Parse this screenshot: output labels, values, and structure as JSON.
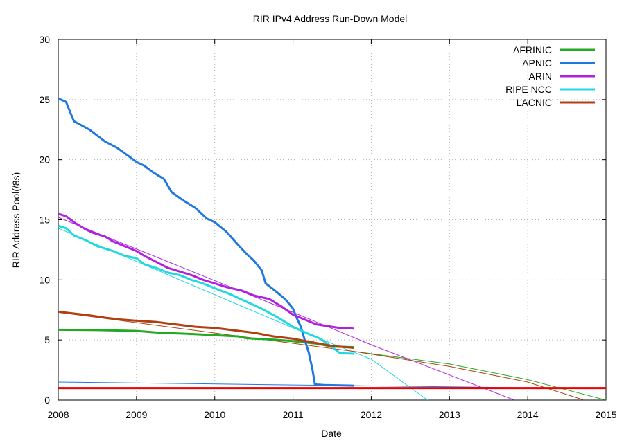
{
  "chart_data": {
    "type": "line",
    "title": "RIR IPv4 Address Run-Down Model",
    "xlabel": "Date",
    "ylabel": "RIR Address Pool(/8s)",
    "xlim": [
      2008,
      2015
    ],
    "ylim": [
      0,
      30
    ],
    "x_ticks": [
      2008,
      2009,
      2010,
      2011,
      2012,
      2013,
      2014,
      2015
    ],
    "x_tick_labels": [
      "2008",
      "2009",
      "2010",
      "2011",
      "2012",
      "2013",
      "2014",
      "2015"
    ],
    "y_ticks": [
      0,
      5,
      10,
      15,
      20,
      25,
      30
    ],
    "y_tick_labels": [
      "0",
      "5",
      "10",
      "15",
      "20",
      "25",
      "30"
    ],
    "grid": true,
    "legend_position": "top-right",
    "series": [
      {
        "name": "AFRINIC",
        "color": "#22aa22",
        "values": [
          [
            2008.0,
            5.85
          ],
          [
            2008.5,
            5.82
          ],
          [
            2009.0,
            5.75
          ],
          [
            2009.3,
            5.6
          ],
          [
            2009.7,
            5.5
          ],
          [
            2010.0,
            5.4
          ],
          [
            2010.3,
            5.3
          ],
          [
            2010.4,
            5.15
          ],
          [
            2010.7,
            5.05
          ],
          [
            2011.0,
            4.9
          ],
          [
            2011.3,
            4.7
          ],
          [
            2011.5,
            4.45
          ],
          [
            2011.78,
            4.4
          ]
        ]
      },
      {
        "name": "APNIC",
        "color": "#1e78e0",
        "values": [
          [
            2008.0,
            25.1
          ],
          [
            2008.1,
            24.8
          ],
          [
            2008.2,
            23.2
          ],
          [
            2008.4,
            22.5
          ],
          [
            2008.6,
            21.5
          ],
          [
            2008.75,
            21.0
          ],
          [
            2008.9,
            20.3
          ],
          [
            2009.0,
            19.8
          ],
          [
            2009.1,
            19.5
          ],
          [
            2009.2,
            19.0
          ],
          [
            2009.35,
            18.4
          ],
          [
            2009.45,
            17.3
          ],
          [
            2009.6,
            16.6
          ],
          [
            2009.75,
            16.0
          ],
          [
            2009.9,
            15.1
          ],
          [
            2010.0,
            14.8
          ],
          [
            2010.15,
            14.0
          ],
          [
            2010.3,
            12.9
          ],
          [
            2010.4,
            12.2
          ],
          [
            2010.5,
            11.6
          ],
          [
            2010.6,
            10.8
          ],
          [
            2010.65,
            9.7
          ],
          [
            2010.75,
            9.2
          ],
          [
            2010.9,
            8.4
          ],
          [
            2011.0,
            7.6
          ],
          [
            2011.05,
            6.8
          ],
          [
            2011.1,
            6.1
          ],
          [
            2011.15,
            5.0
          ],
          [
            2011.2,
            4.0
          ],
          [
            2011.25,
            2.5
          ],
          [
            2011.28,
            1.3
          ],
          [
            2011.4,
            1.25
          ],
          [
            2011.78,
            1.2
          ]
        ]
      },
      {
        "name": "ARIN",
        "color": "#b020e0",
        "values": [
          [
            2008.0,
            15.5
          ],
          [
            2008.1,
            15.3
          ],
          [
            2008.2,
            14.8
          ],
          [
            2008.35,
            14.2
          ],
          [
            2008.45,
            13.9
          ],
          [
            2008.6,
            13.6
          ],
          [
            2008.7,
            13.2
          ],
          [
            2008.85,
            12.8
          ],
          [
            2009.0,
            12.4
          ],
          [
            2009.1,
            12.0
          ],
          [
            2009.25,
            11.5
          ],
          [
            2009.4,
            11.0
          ],
          [
            2009.55,
            10.7
          ],
          [
            2009.7,
            10.4
          ],
          [
            2009.85,
            10.0
          ],
          [
            2010.0,
            9.7
          ],
          [
            2010.15,
            9.4
          ],
          [
            2010.35,
            9.1
          ],
          [
            2010.5,
            8.7
          ],
          [
            2010.7,
            8.4
          ],
          [
            2010.85,
            7.8
          ],
          [
            2011.0,
            7.1
          ],
          [
            2011.15,
            6.7
          ],
          [
            2011.3,
            6.3
          ],
          [
            2011.5,
            6.1
          ],
          [
            2011.6,
            6.0
          ],
          [
            2011.78,
            5.95
          ]
        ]
      },
      {
        "name": "RIPE NCC",
        "color": "#20d8e0",
        "values": [
          [
            2008.0,
            14.5
          ],
          [
            2008.1,
            14.3
          ],
          [
            2008.2,
            13.7
          ],
          [
            2008.35,
            13.3
          ],
          [
            2008.5,
            12.8
          ],
          [
            2008.7,
            12.4
          ],
          [
            2008.85,
            12.0
          ],
          [
            2009.0,
            11.8
          ],
          [
            2009.1,
            11.3
          ],
          [
            2009.25,
            11.0
          ],
          [
            2009.4,
            10.6
          ],
          [
            2009.55,
            10.4
          ],
          [
            2009.7,
            10.0
          ],
          [
            2009.85,
            9.7
          ],
          [
            2010.0,
            9.3
          ],
          [
            2010.2,
            8.8
          ],
          [
            2010.4,
            8.2
          ],
          [
            2010.6,
            7.6
          ],
          [
            2010.8,
            6.9
          ],
          [
            2011.0,
            6.1
          ],
          [
            2011.2,
            5.5
          ],
          [
            2011.35,
            5.1
          ],
          [
            2011.5,
            4.4
          ],
          [
            2011.6,
            3.9
          ],
          [
            2011.78,
            3.85
          ]
        ]
      },
      {
        "name": "LACNIC",
        "color": "#b04010",
        "values": [
          [
            2008.0,
            7.35
          ],
          [
            2008.2,
            7.2
          ],
          [
            2008.4,
            7.05
          ],
          [
            2008.6,
            6.85
          ],
          [
            2008.8,
            6.7
          ],
          [
            2009.0,
            6.6
          ],
          [
            2009.25,
            6.5
          ],
          [
            2009.5,
            6.3
          ],
          [
            2009.75,
            6.1
          ],
          [
            2010.0,
            6.0
          ],
          [
            2010.25,
            5.8
          ],
          [
            2010.5,
            5.6
          ],
          [
            2010.75,
            5.3
          ],
          [
            2011.0,
            5.1
          ],
          [
            2011.25,
            4.8
          ],
          [
            2011.5,
            4.5
          ],
          [
            2011.78,
            4.35
          ]
        ]
      }
    ],
    "model_lines": [
      {
        "color": "#22aa22",
        "values": [
          [
            2011.78,
            4.05
          ],
          [
            2013.0,
            3.0
          ],
          [
            2014.0,
            1.7
          ],
          [
            2015.0,
            0.0
          ]
        ]
      },
      {
        "color": "#1e78e0",
        "values": [
          [
            2008.0,
            1.5
          ],
          [
            2015.0,
            0.95
          ]
        ]
      },
      {
        "color": "#b020e0",
        "values": [
          [
            2008.0,
            15.2
          ],
          [
            2011.0,
            7.3
          ],
          [
            2012.0,
            4.6
          ],
          [
            2013.83,
            0.0
          ]
        ]
      },
      {
        "color": "#20d8e0",
        "values": [
          [
            2008.0,
            14.3
          ],
          [
            2011.0,
            6.0
          ],
          [
            2012.0,
            3.4
          ],
          [
            2012.72,
            0.0
          ]
        ]
      },
      {
        "color": "#b04010",
        "values": [
          [
            2008.0,
            7.3
          ],
          [
            2011.78,
            4.05
          ],
          [
            2013.0,
            2.8
          ],
          [
            2014.0,
            1.5
          ],
          [
            2014.72,
            0.0
          ]
        ]
      }
    ],
    "reference_line": {
      "color": "#ee0000",
      "y": 1.0
    }
  }
}
